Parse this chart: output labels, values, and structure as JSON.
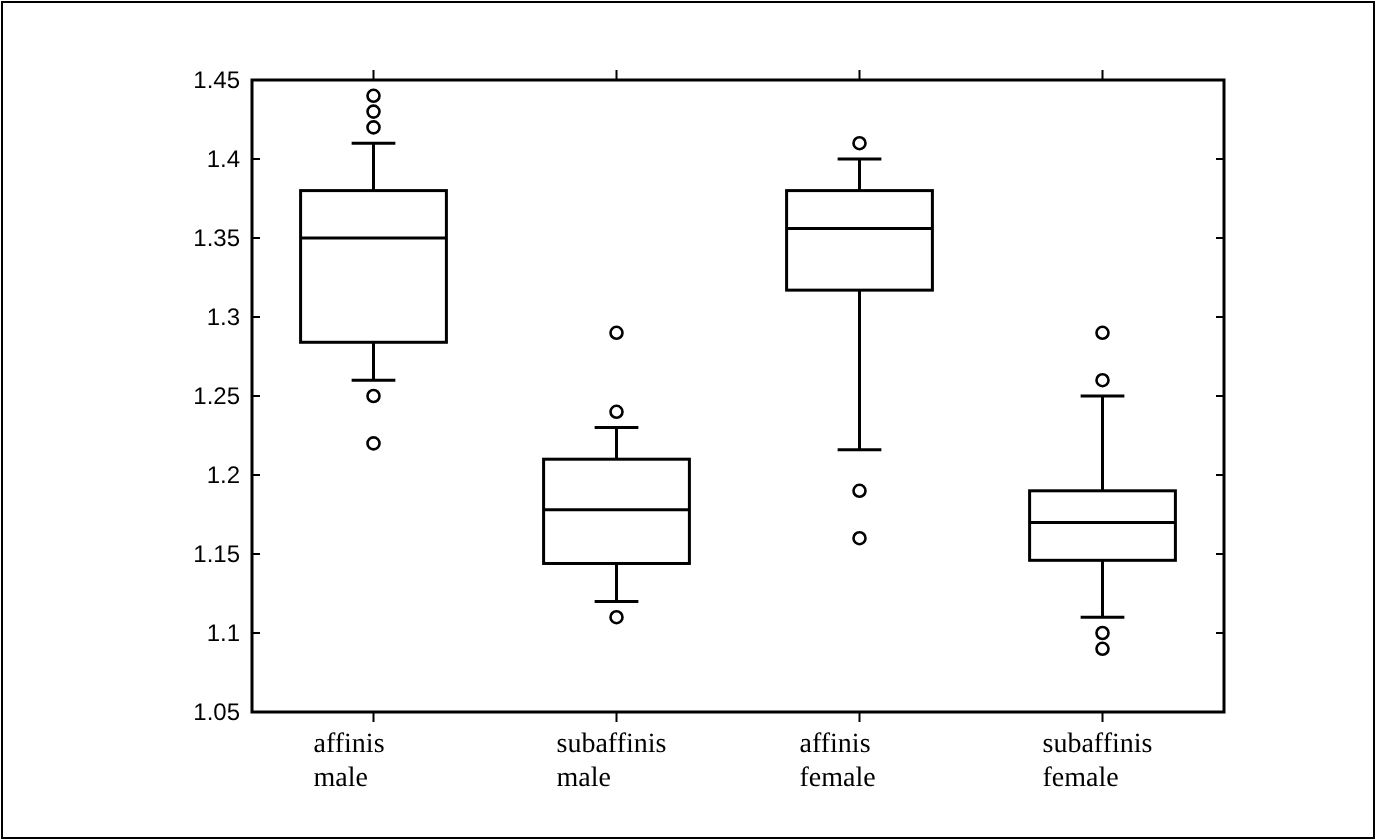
{
  "chart_data": {
    "type": "box",
    "categories": [
      "affinis\nmale",
      "subaffinis\nmale",
      "affinis\nfemale",
      "subaffinis\nfemale"
    ],
    "boxes": [
      {
        "low": 1.26,
        "q1": 1.284,
        "median": 1.35,
        "q3": 1.38,
        "high": 1.41,
        "outliers": [
          1.44,
          1.43,
          1.42,
          1.25,
          1.22
        ]
      },
      {
        "low": 1.12,
        "q1": 1.144,
        "median": 1.178,
        "q3": 1.21,
        "high": 1.23,
        "outliers": [
          1.29,
          1.24,
          1.11
        ]
      },
      {
        "low": 1.216,
        "q1": 1.317,
        "median": 1.356,
        "q3": 1.38,
        "high": 1.4,
        "outliers": [
          1.41,
          1.19,
          1.16
        ]
      },
      {
        "low": 1.11,
        "q1": 1.146,
        "median": 1.17,
        "q3": 1.19,
        "high": 1.25,
        "outliers": [
          1.29,
          1.26,
          1.1,
          1.09
        ]
      }
    ],
    "ylim": [
      1.05,
      1.45
    ],
    "yticks": [
      1.05,
      1.1,
      1.15,
      1.2,
      1.25,
      1.3,
      1.35,
      1.4,
      1.45
    ],
    "grid": false,
    "color": "#000000"
  }
}
